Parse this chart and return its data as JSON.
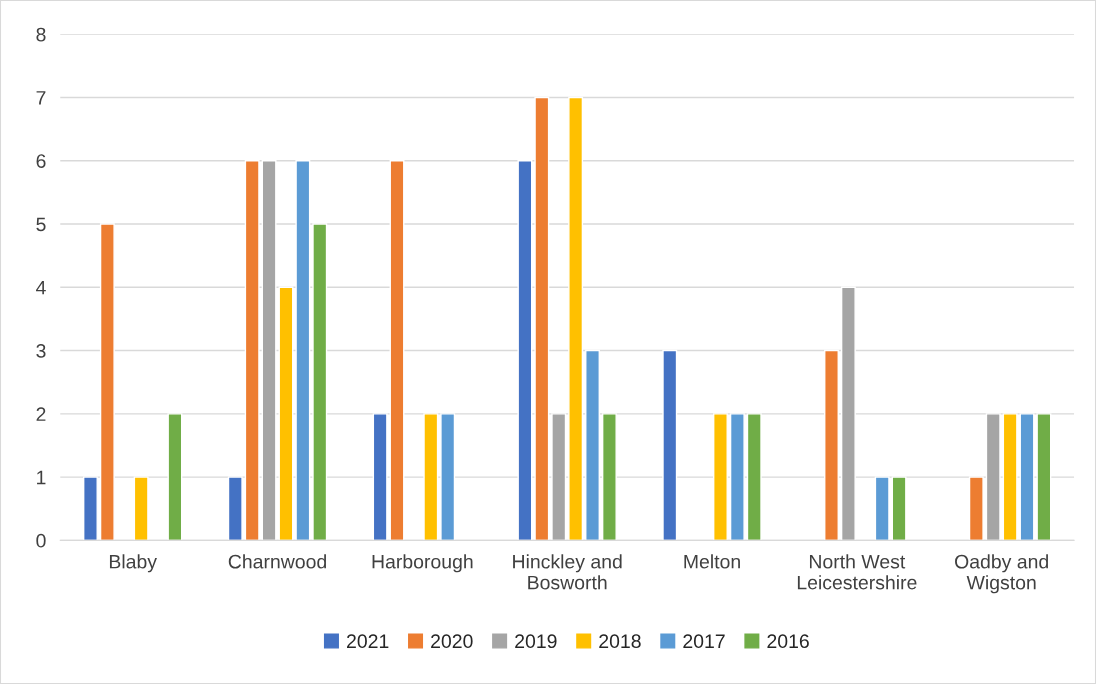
{
  "chart_data": {
    "type": "bar",
    "categories": [
      "Blaby",
      "Charnwood",
      "Harborough",
      "Hinckley and Bosworth",
      "Melton",
      "North West Leicestershire",
      "Oadby and Wigston"
    ],
    "series": [
      {
        "name": "2021",
        "color": "#4472c4",
        "values": [
          1,
          1,
          2,
          6,
          3,
          null,
          null
        ]
      },
      {
        "name": "2020",
        "color": "#ed7d31",
        "values": [
          5,
          6,
          6,
          7,
          null,
          3,
          1
        ]
      },
      {
        "name": "2019",
        "color": "#a5a5a5",
        "values": [
          null,
          6,
          null,
          2,
          null,
          4,
          2
        ]
      },
      {
        "name": "2018",
        "color": "#ffc000",
        "values": [
          1,
          4,
          2,
          7,
          2,
          null,
          2
        ]
      },
      {
        "name": "2017",
        "color": "#5b9bd5",
        "values": [
          null,
          6,
          2,
          3,
          2,
          1,
          2
        ]
      },
      {
        "name": "2016",
        "color": "#70ad47",
        "values": [
          2,
          5,
          null,
          2,
          2,
          1,
          2
        ]
      }
    ],
    "ylim": [
      0,
      8
    ],
    "yticks": [
      0,
      1,
      2,
      3,
      4,
      5,
      6,
      7,
      8
    ],
    "grid": "y",
    "legend": "bottom"
  }
}
